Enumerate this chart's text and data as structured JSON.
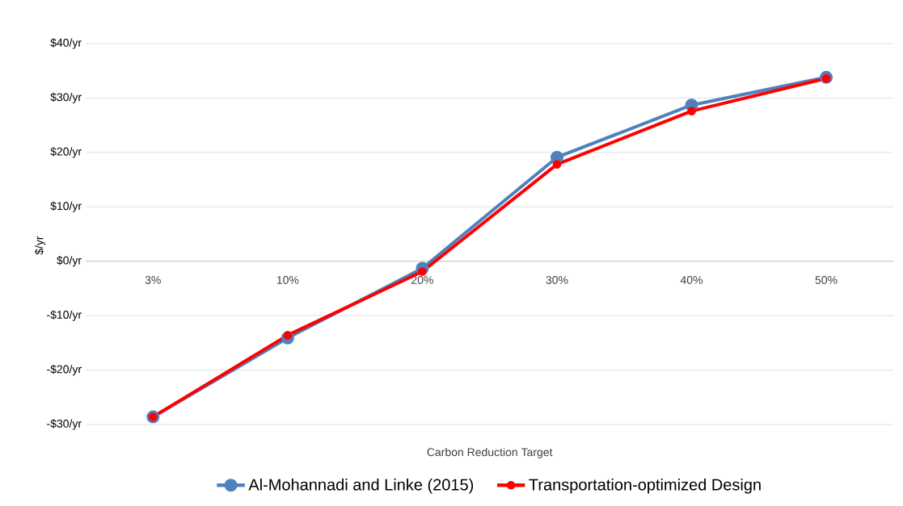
{
  "chart_data": {
    "type": "line",
    "xlabel": "Carbon Reduction Target",
    "ylabel": "$/yr",
    "categories": [
      "3%",
      "10%",
      "20%",
      "30%",
      "40%",
      "50%"
    ],
    "series": [
      {
        "name": "Al-Mohannadi and Linke (2015)",
        "color": "#4f81bd",
        "values": [
          -28.6,
          -14.1,
          -1.3,
          19.1,
          28.7,
          33.8
        ]
      },
      {
        "name": "Transportation-optimized Design",
        "color": "#ff0000",
        "values": [
          -28.6,
          -13.6,
          -1.9,
          17.8,
          27.6,
          33.6
        ]
      }
    ],
    "ylim": [
      -30,
      40
    ],
    "yticks": [
      {
        "value": -30,
        "label": "-$30/yr"
      },
      {
        "value": -20,
        "label": "-$20/yr"
      },
      {
        "value": -10,
        "label": "-$10/yr"
      },
      {
        "value": 0,
        "label": "$0/yr"
      },
      {
        "value": 10,
        "label": "$10/yr"
      },
      {
        "value": 20,
        "label": "$20/yr"
      },
      {
        "value": 30,
        "label": "$30/yr"
      },
      {
        "value": 40,
        "label": "$40/yr"
      }
    ],
    "grid": "y",
    "legend": "bottom",
    "marker": "circle",
    "line_style": "solid"
  }
}
